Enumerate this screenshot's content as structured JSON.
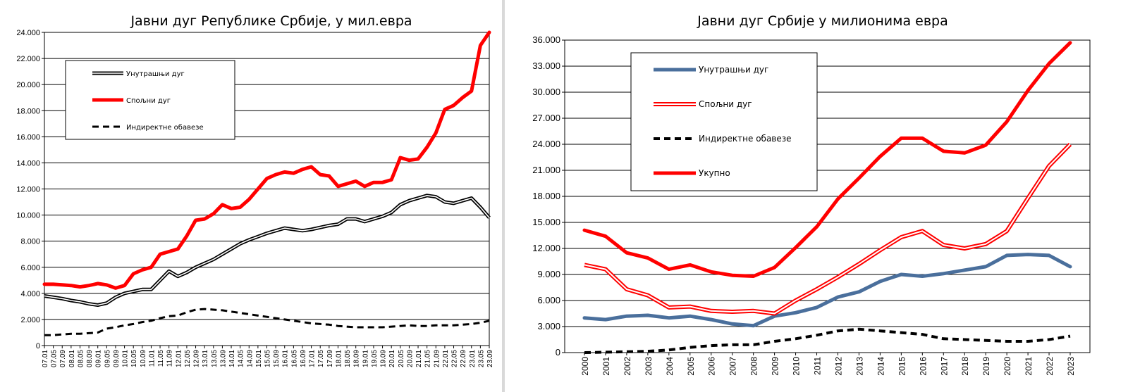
{
  "chart_data": [
    {
      "type": "line",
      "title": "Јавни дуг Републике Србије, у мил.евра",
      "xlabel": "",
      "ylabel": "",
      "ylim": [
        0,
        24000
      ],
      "yticks": [
        "0",
        "2.000",
        "4.000",
        "6.000",
        "8.000",
        "10.000",
        "12.000",
        "14.000",
        "16.000",
        "18.000",
        "20.000",
        "22.000",
        "24.000"
      ],
      "grid": true,
      "legend_position": "top-left",
      "categories": [
        "07.01",
        "07.05",
        "07.09",
        "08.01",
        "08.05",
        "08.09",
        "09.01",
        "09.05",
        "09.09",
        "10.01",
        "10.05",
        "10.09",
        "11.01",
        "11.05",
        "11.09",
        "12.01",
        "12.05",
        "12.09",
        "13.01",
        "13.05",
        "13.09",
        "14.01",
        "14.05",
        "14.09",
        "15.01",
        "15.05",
        "15.09",
        "16.01",
        "16.05",
        "16.09",
        "17.01",
        "17.05",
        "17.09",
        "18.01",
        "18.05",
        "18.09",
        "19.01",
        "19.05",
        "19.09",
        "20.01",
        "20.05",
        "20.09",
        "21.01",
        "21.05",
        "21.09",
        "22.01",
        "22.05",
        "22.09",
        "23.01",
        "23.05",
        "23.09"
      ],
      "series": [
        {
          "name": "Унутрашњи дуг",
          "color": "#000000",
          "style": "double",
          "values": [
            3800,
            3700,
            3600,
            3450,
            3350,
            3200,
            3100,
            3250,
            3700,
            4000,
            4150,
            4300,
            4300,
            5000,
            5700,
            5300,
            5600,
            6000,
            6300,
            6600,
            7000,
            7400,
            7800,
            8100,
            8350,
            8600,
            8800,
            9000,
            8900,
            8800,
            8900,
            9050,
            9200,
            9300,
            9700,
            9700,
            9500,
            9700,
            9900,
            10200,
            10800,
            11100,
            11300,
            11500,
            11400,
            11000,
            10900,
            11100,
            11300,
            10600,
            9800
          ]
        },
        {
          "name": "Спољни дуг",
          "color": "#ff0000",
          "style": "thick",
          "values": [
            4700,
            4700,
            4650,
            4600,
            4500,
            4600,
            4750,
            4650,
            4400,
            4600,
            5500,
            5800,
            6000,
            7000,
            7200,
            7400,
            8400,
            9600,
            9700,
            10100,
            10800,
            10500,
            10600,
            11200,
            12000,
            12800,
            13100,
            13300,
            13200,
            13500,
            13700,
            13100,
            13000,
            12200,
            12400,
            12600,
            12200,
            12500,
            12500,
            12700,
            14400,
            14200,
            14300,
            15200,
            16300,
            18100,
            18400,
            19000,
            19500,
            23000,
            24000
          ]
        },
        {
          "name": "Индиректне обавезе",
          "color": "#000000",
          "style": "dashed",
          "values": [
            800,
            800,
            850,
            900,
            900,
            950,
            1000,
            1300,
            1400,
            1550,
            1650,
            1800,
            1900,
            2100,
            2250,
            2300,
            2550,
            2750,
            2800,
            2750,
            2700,
            2600,
            2500,
            2400,
            2300,
            2200,
            2100,
            2000,
            1900,
            1800,
            1700,
            1650,
            1600,
            1500,
            1450,
            1400,
            1400,
            1400,
            1400,
            1450,
            1500,
            1550,
            1500,
            1500,
            1550,
            1550,
            1550,
            1600,
            1650,
            1750,
            1900
          ]
        }
      ]
    },
    {
      "type": "line",
      "title": "Јавни дуг Србије у милионима евра",
      "xlabel": "",
      "ylabel": "",
      "ylim": [
        0,
        36000
      ],
      "yticks": [
        "0",
        "3.000",
        "6.000",
        "9.000",
        "12.000",
        "15.000",
        "18.000",
        "21.000",
        "24.000",
        "27.000",
        "30.000",
        "33.000",
        "36.000"
      ],
      "grid": true,
      "legend_position": "top-left",
      "categories": [
        "2000",
        "2001",
        "2002",
        "2003",
        "2004",
        "2005",
        "2006",
        "2007",
        "2008",
        "2009",
        "2010",
        "2011",
        "2012",
        "2013",
        "2014",
        "2015",
        "2016",
        "2017",
        "2018",
        "2019",
        "2020",
        "2021",
        "2022",
        "2023"
      ],
      "series": [
        {
          "name": "Унутрашњи дуг",
          "color": "#4a6f9c",
          "style": "thick",
          "values": [
            4000,
            3800,
            4200,
            4300,
            4000,
            4200,
            3800,
            3300,
            3100,
            4200,
            4600,
            5200,
            6400,
            7000,
            8200,
            9000,
            8800,
            9100,
            9500,
            9900,
            11200,
            11300,
            11200,
            9900
          ]
        },
        {
          "name": "Спољни дуг",
          "color": "#ff0000",
          "style": "double",
          "values": [
            10100,
            9600,
            7300,
            6600,
            5200,
            5300,
            4800,
            4700,
            4800,
            4500,
            6000,
            7300,
            8700,
            10200,
            11800,
            13300,
            14000,
            12400,
            12000,
            12500,
            14000,
            17800,
            21500,
            24000
          ]
        },
        {
          "name": "Индиректне обавезе",
          "color": "#000000",
          "style": "dashed",
          "values": [
            0,
            50,
            100,
            150,
            300,
            600,
            800,
            900,
            900,
            1300,
            1600,
            2000,
            2500,
            2700,
            2500,
            2300,
            2100,
            1600,
            1500,
            1400,
            1300,
            1300,
            1500,
            1900
          ]
        },
        {
          "name": "Укупно",
          "color": "#ff0000",
          "style": "thick",
          "values": [
            14100,
            13400,
            11500,
            10900,
            9600,
            10100,
            9300,
            8900,
            8800,
            9800,
            12100,
            14500,
            17700,
            20100,
            22600,
            24700,
            24700,
            23200,
            23000,
            23900,
            26600,
            30200,
            33300,
            35700
          ]
        }
      ]
    }
  ]
}
